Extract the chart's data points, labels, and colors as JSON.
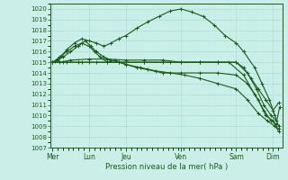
{
  "title": "Pression niveau de la mer( hPa )",
  "ylim": [
    1007,
    1020.5
  ],
  "yticks": [
    1007,
    1008,
    1009,
    1010,
    1011,
    1012,
    1013,
    1014,
    1015,
    1016,
    1017,
    1018,
    1019,
    1020
  ],
  "xtick_labels": [
    "Mer",
    "Lun",
    "Jeu",
    "Ven",
    "Sam",
    "Dim"
  ],
  "xtick_positions": [
    0.0,
    1.0,
    2.0,
    3.5,
    5.0,
    6.0
  ],
  "xlim": [
    -0.05,
    6.25
  ],
  "bg_color": "#cceee8",
  "grid_major_color": "#aaddda",
  "grid_minor_color": "#bbeeea",
  "line_color": "#1a5c1a",
  "line_width": 0.8,
  "marker": "+",
  "markersize": 2.5,
  "markeredgewidth": 0.7,
  "series": [
    {
      "x": [
        0.0,
        0.08,
        0.15,
        0.25,
        0.4,
        0.6,
        0.8,
        1.0,
        1.2,
        1.4,
        1.6,
        1.8,
        2.0,
        2.3,
        2.6,
        2.9,
        3.2,
        3.5,
        3.8,
        4.1,
        4.4,
        4.7,
        5.0,
        5.2,
        5.5,
        5.7,
        5.9,
        6.05,
        6.15
      ],
      "y": [
        1015.0,
        1015.1,
        1015.3,
        1015.6,
        1016.2,
        1016.8,
        1017.2,
        1017.0,
        1016.8,
        1016.5,
        1016.8,
        1017.2,
        1017.5,
        1018.2,
        1018.8,
        1019.3,
        1019.8,
        1020.0,
        1019.7,
        1019.3,
        1018.5,
        1017.5,
        1016.8,
        1016.0,
        1014.5,
        1013.0,
        1011.5,
        1010.0,
        1009.0
      ]
    },
    {
      "x": [
        0.0,
        0.1,
        0.2,
        0.4,
        0.6,
        0.8,
        1.0,
        1.15,
        1.3,
        1.5,
        1.7,
        2.0,
        2.3,
        2.6,
        3.0,
        3.5,
        4.0,
        4.5,
        5.0,
        5.3,
        5.6,
        5.8,
        6.0,
        6.15
      ],
      "y": [
        1015.0,
        1015.2,
        1015.5,
        1016.0,
        1016.5,
        1016.8,
        1016.5,
        1016.0,
        1015.5,
        1015.0,
        1015.2,
        1014.8,
        1014.5,
        1014.3,
        1014.0,
        1014.0,
        1014.0,
        1014.0,
        1013.8,
        1013.0,
        1011.5,
        1010.0,
        1009.5,
        1008.5
      ]
    },
    {
      "x": [
        0.0,
        0.15,
        0.3,
        0.5,
        0.7,
        0.9,
        1.05,
        1.2,
        1.4,
        1.6,
        1.8,
        2.0,
        2.4,
        2.8,
        3.2,
        3.6,
        4.0,
        4.5,
        5.0,
        5.3,
        5.6,
        5.85,
        6.05,
        6.15
      ],
      "y": [
        1015.0,
        1015.2,
        1015.5,
        1016.0,
        1016.5,
        1017.0,
        1016.5,
        1016.0,
        1015.5,
        1015.2,
        1015.0,
        1014.8,
        1014.5,
        1014.2,
        1014.0,
        1013.8,
        1013.5,
        1013.0,
        1012.5,
        1011.5,
        1010.2,
        1009.5,
        1009.0,
        1008.8
      ]
    },
    {
      "x": [
        0.0,
        0.2,
        0.5,
        1.0,
        1.5,
        2.0,
        2.5,
        3.0,
        3.5,
        4.0,
        4.5,
        5.0,
        5.2,
        5.4,
        5.6,
        5.8,
        6.0,
        6.15
      ],
      "y": [
        1015.0,
        1015.0,
        1015.2,
        1015.3,
        1015.3,
        1015.2,
        1015.2,
        1015.2,
        1015.0,
        1015.0,
        1015.0,
        1015.0,
        1014.5,
        1013.5,
        1012.5,
        1011.5,
        1010.5,
        1011.2
      ]
    },
    {
      "x": [
        0.0,
        0.3,
        0.7,
        1.0,
        1.5,
        2.0,
        2.5,
        3.0,
        3.5,
        4.0,
        4.5,
        5.0,
        5.3,
        5.55,
        5.75,
        5.95,
        6.1,
        6.18
      ],
      "y": [
        1015.0,
        1015.0,
        1015.0,
        1015.0,
        1015.0,
        1015.0,
        1015.0,
        1015.0,
        1015.0,
        1015.0,
        1015.0,
        1015.0,
        1014.0,
        1012.5,
        1011.0,
        1010.0,
        1009.5,
        1010.8
      ]
    },
    {
      "x": [
        0.0,
        0.4,
        0.8,
        1.2,
        1.8,
        2.5,
        3.2,
        4.0,
        4.8,
        5.2,
        5.5,
        5.75,
        5.95,
        6.1
      ],
      "y": [
        1015.0,
        1015.0,
        1015.0,
        1015.0,
        1015.0,
        1015.0,
        1015.0,
        1015.0,
        1015.0,
        1013.8,
        1012.0,
        1010.5,
        1009.5,
        1009.2
      ]
    }
  ]
}
